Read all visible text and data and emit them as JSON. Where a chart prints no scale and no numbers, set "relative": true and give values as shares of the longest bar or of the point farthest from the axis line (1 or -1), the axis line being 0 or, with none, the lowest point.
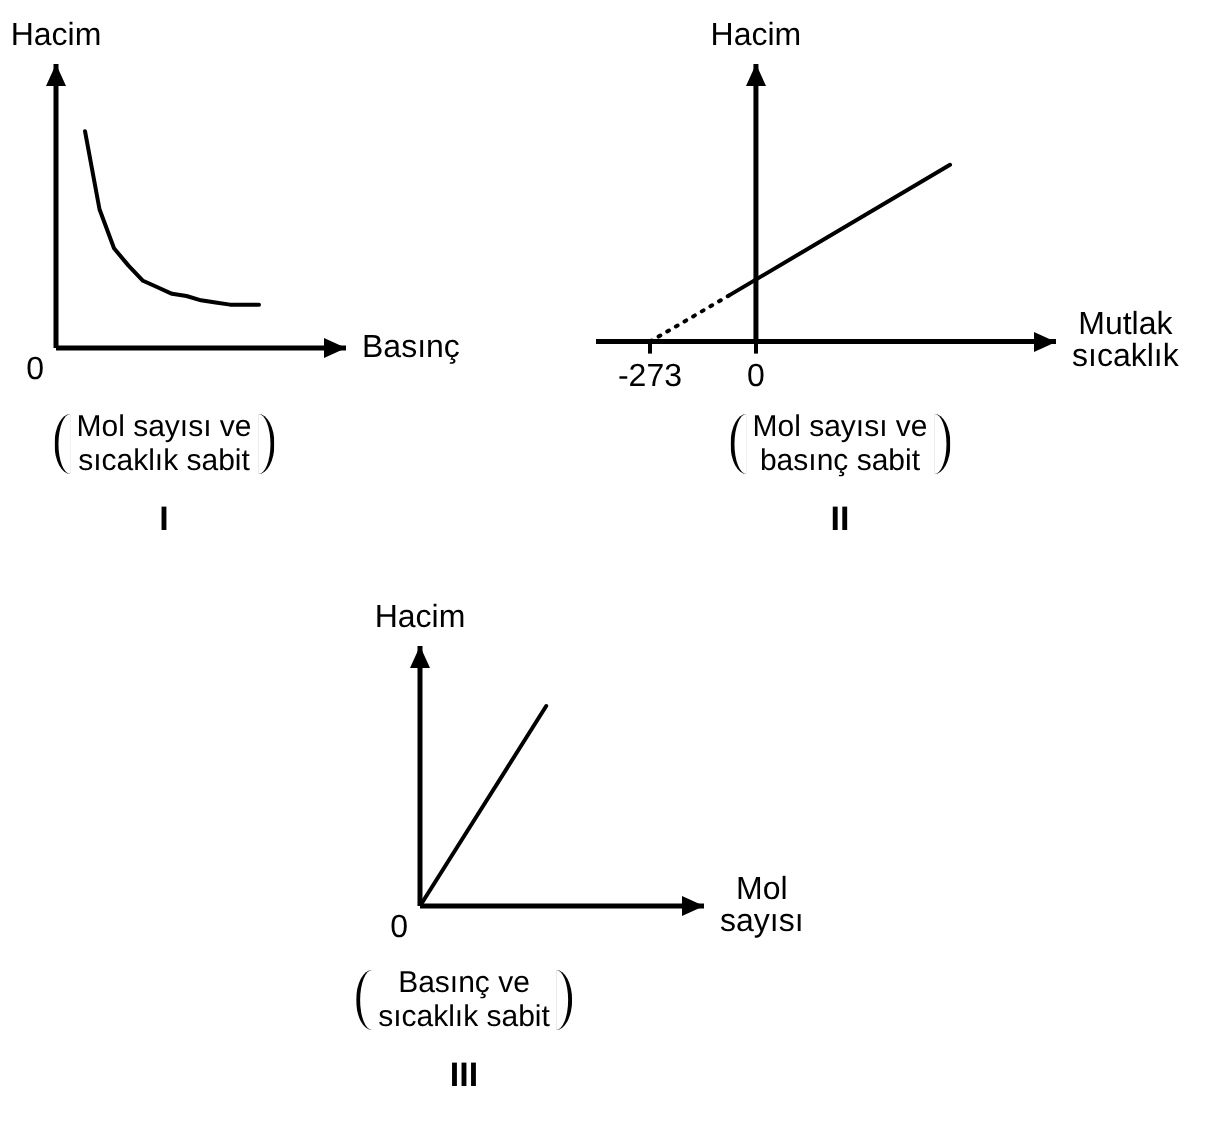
{
  "chart_data": [
    {
      "type": "line",
      "title": "I",
      "subtitle": "Mol sayısı ve\nsıcaklık sabit",
      "xlabel": "Basınç",
      "ylabel": "Hacim",
      "annotations": [
        "0"
      ],
      "relative": true,
      "marker": "none",
      "categories": [
        null,
        null,
        null,
        null,
        null,
        null,
        null,
        null,
        null,
        null,
        null,
        null,
        null,
        null,
        null,
        null,
        null,
        null,
        null,
        null,
        null
      ],
      "series": [
        {
          "color": "#000000",
          "values": [
            null,
            null,
            1,
            0.64,
            0.46,
            0.38,
            0.31,
            0.28,
            0.25,
            0.24,
            0.22,
            0.21,
            0.2,
            0.2,
            0.2,
            null,
            null,
            null,
            null,
            null,
            null
          ]
        }
      ]
    },
    {
      "type": "line",
      "title": "II",
      "subtitle": "Mol sayısı ve\nbasınç sabit",
      "xlabel": "Mutlak\nsıcaklık",
      "ylabel": "Hacim",
      "relative": true,
      "marker": "none",
      "xlim": [
        -412,
        773
      ],
      "xticks": [
        -273,
        0
      ],
      "series": [
        {
          "color": "#000000",
          "line_style": "dotted",
          "x": [
            -273,
            -70
          ],
          "values": [
            0,
            0.26
          ]
        },
        {
          "color": "#000000",
          "x": [
            -70,
            500
          ],
          "values": [
            0.26,
            1
          ]
        }
      ]
    },
    {
      "type": "line",
      "title": "III",
      "subtitle": "Basınç ve\nsıcaklık sabit",
      "xlabel": "Mol\nsayısı",
      "ylabel": "Hacim",
      "annotations": [
        "0"
      ],
      "relative": true,
      "marker": "none",
      "categories": [
        null,
        null,
        null,
        null,
        null,
        null,
        null,
        null,
        null,
        null
      ],
      "series": [
        {
          "color": "#000000",
          "values": [
            0,
            0.25,
            0.5,
            0.75,
            1,
            null,
            null,
            null,
            null,
            null
          ]
        }
      ]
    }
  ]
}
